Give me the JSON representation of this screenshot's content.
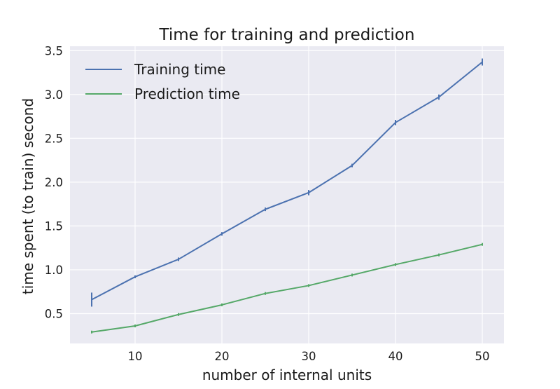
{
  "chart_data": {
    "type": "line",
    "title": "Time for training and prediction",
    "xlabel": "number of internal units",
    "ylabel": "time spent (to train) second",
    "x": [
      5,
      10,
      15,
      20,
      25,
      30,
      35,
      40,
      45,
      50
    ],
    "series": [
      {
        "name": "Training time",
        "color": "#4c72b0",
        "values": [
          0.66,
          0.92,
          1.12,
          1.41,
          1.69,
          1.88,
          2.19,
          2.68,
          2.97,
          3.37
        ],
        "errors": [
          0.08,
          0.01,
          0.02,
          0.02,
          0.02,
          0.03,
          0.02,
          0.03,
          0.03,
          0.04
        ]
      },
      {
        "name": "Prediction time",
        "color": "#55a868",
        "values": [
          0.29,
          0.36,
          0.49,
          0.6,
          0.73,
          0.82,
          0.94,
          1.06,
          1.17,
          1.29
        ],
        "errors": [
          0.005,
          0.005,
          0.005,
          0.005,
          0.005,
          0.005,
          0.005,
          0.005,
          0.005,
          0.005
        ]
      }
    ],
    "x_ticks": [
      "10",
      "20",
      "30",
      "40",
      "50"
    ],
    "y_ticks": [
      "0.5",
      "1.0",
      "1.5",
      "2.0",
      "2.5",
      "3.0",
      "3.5"
    ],
    "xlim": [
      2.5,
      52.5
    ],
    "ylim": [
      0.16,
      3.55
    ],
    "grid": true,
    "legend_position": "upper-left",
    "background_color": "#eaeaf2",
    "grid_color": "#ffffff"
  }
}
